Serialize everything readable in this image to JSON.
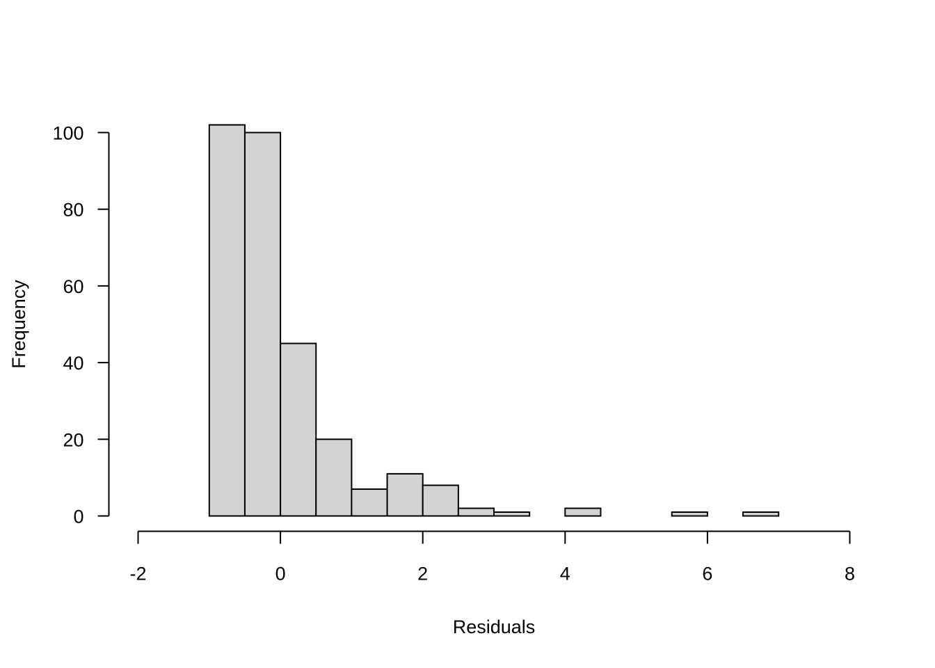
{
  "chart_data": {
    "type": "bar",
    "title": "",
    "xlabel": "Residuals",
    "ylabel": "Frequency",
    "bar_color": "#d3d3d3",
    "edge_color": "#000000",
    "bins": [
      {
        "start": -1.0,
        "end": -0.5,
        "count": 102
      },
      {
        "start": -0.5,
        "end": 0.0,
        "count": 100
      },
      {
        "start": 0.0,
        "end": 0.5,
        "count": 45
      },
      {
        "start": 0.5,
        "end": 1.0,
        "count": 20
      },
      {
        "start": 1.0,
        "end": 1.5,
        "count": 7
      },
      {
        "start": 1.5,
        "end": 2.0,
        "count": 11
      },
      {
        "start": 2.0,
        "end": 2.5,
        "count": 8
      },
      {
        "start": 2.5,
        "end": 3.0,
        "count": 2
      },
      {
        "start": 3.0,
        "end": 3.5,
        "count": 1
      },
      {
        "start": 3.5,
        "end": 4.0,
        "count": 0
      },
      {
        "start": 4.0,
        "end": 4.5,
        "count": 2
      },
      {
        "start": 4.5,
        "end": 5.0,
        "count": 0
      },
      {
        "start": 5.0,
        "end": 5.5,
        "count": 0
      },
      {
        "start": 5.5,
        "end": 6.0,
        "count": 1
      },
      {
        "start": 6.0,
        "end": 6.5,
        "count": 0
      },
      {
        "start": 6.5,
        "end": 7.0,
        "count": 1
      }
    ],
    "xlim": [
      -2,
      8
    ],
    "ylim": [
      0,
      100
    ],
    "xticks": [
      "-2",
      "0",
      "2",
      "4",
      "6",
      "8"
    ],
    "yticks": [
      "0",
      "20",
      "40",
      "60",
      "80",
      "100"
    ],
    "grid": false
  }
}
